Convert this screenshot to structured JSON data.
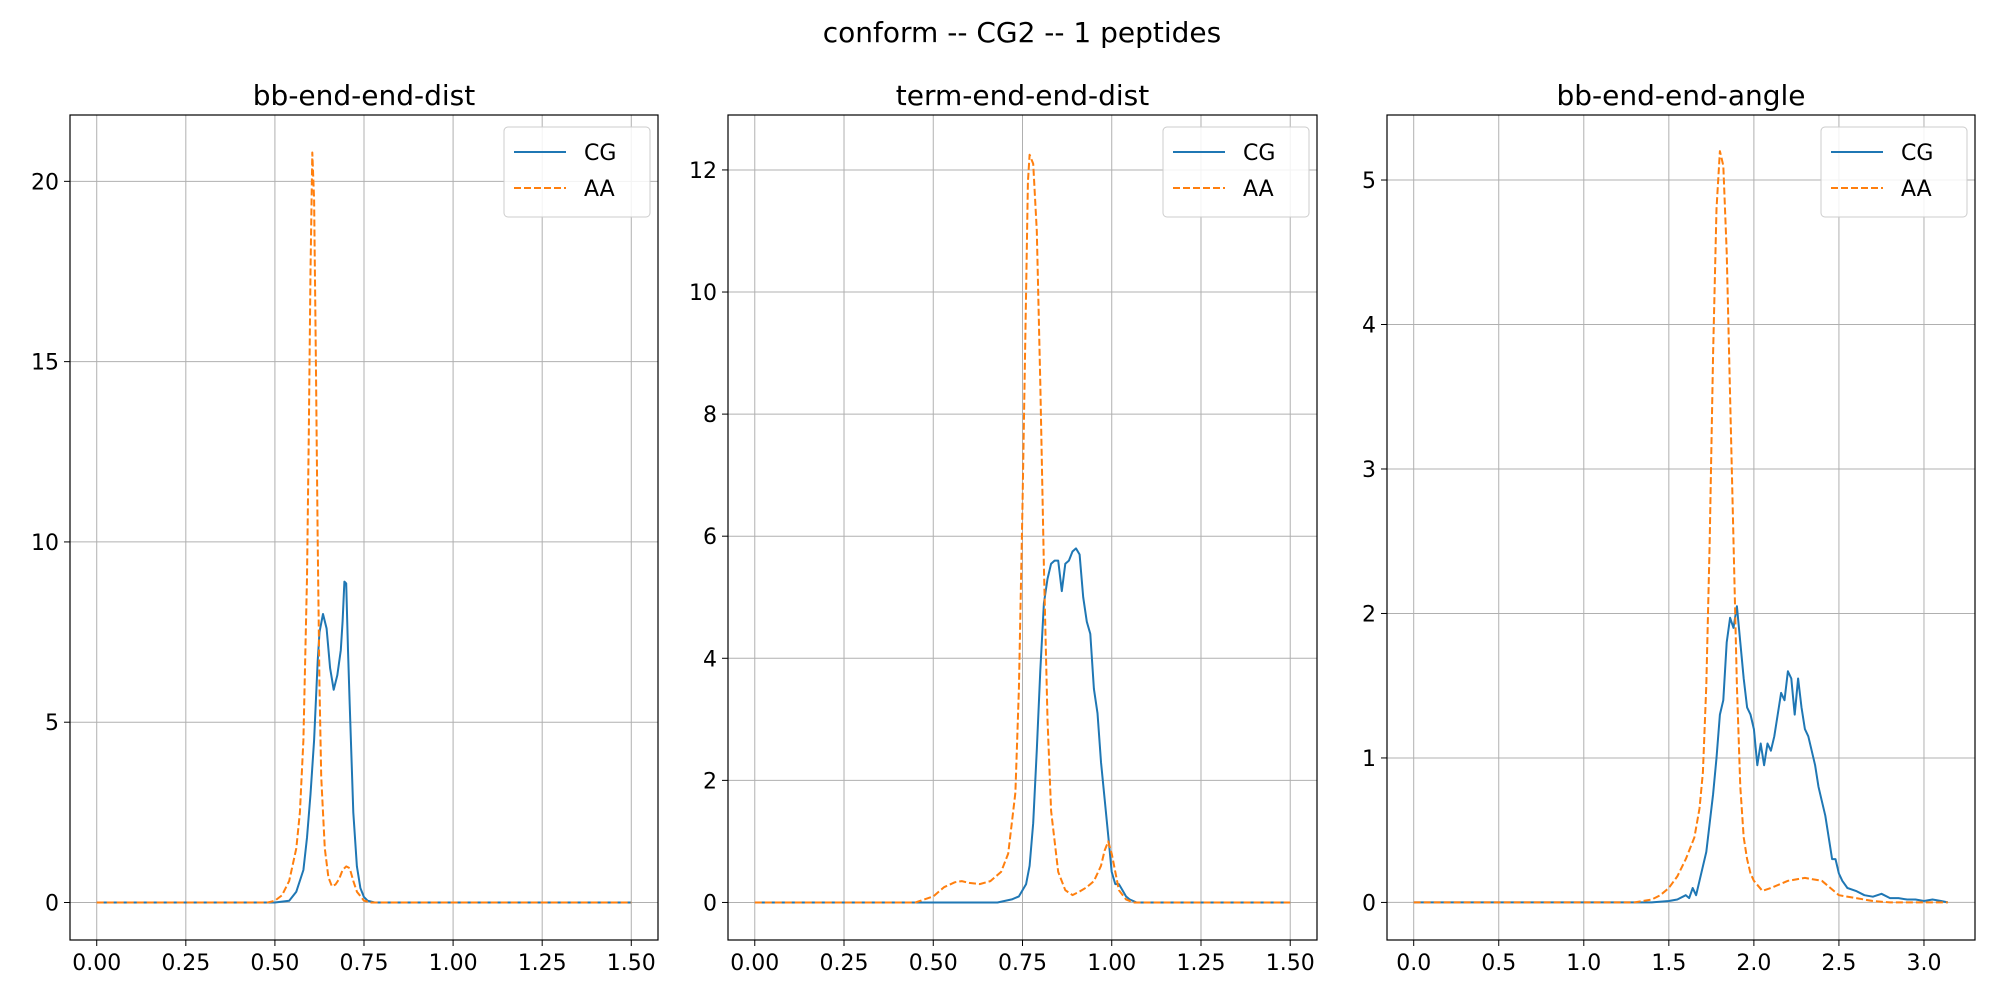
{
  "figure": {
    "suptitle": "conform -- CG2 -- 1 peptides"
  },
  "colors": {
    "CG": "#1f77b4",
    "AA": "#ff7f0e",
    "grid": "#b0b0b0",
    "axes": "#000000"
  },
  "chart_data": [
    {
      "type": "line",
      "title": "bb-end-end-dist",
      "xlabel": "",
      "ylabel": "",
      "xlim": [
        -0.075,
        1.575
      ],
      "ylim": [
        -1.04,
        21.84
      ],
      "xticks": [
        0.0,
        0.25,
        0.5,
        0.75,
        1.0,
        1.25,
        1.5
      ],
      "xtick_labels": [
        "0.00",
        "0.25",
        "0.50",
        "0.75",
        "1.00",
        "1.25",
        "1.50"
      ],
      "yticks": [
        0,
        5,
        10,
        15,
        20
      ],
      "ytick_labels": [
        "0",
        "5",
        "10",
        "15",
        "20"
      ],
      "grid": true,
      "legend": "top-right",
      "series": [
        {
          "name": "CG",
          "style": "solid",
          "x": [
            0.0,
            0.5,
            0.54,
            0.56,
            0.58,
            0.59,
            0.6,
            0.61,
            0.62,
            0.625,
            0.635,
            0.645,
            0.655,
            0.665,
            0.675,
            0.685,
            0.69,
            0.695,
            0.7,
            0.705,
            0.71,
            0.715,
            0.72,
            0.73,
            0.74,
            0.75,
            0.76,
            0.78,
            1.5
          ],
          "y": [
            0,
            0,
            0.05,
            0.3,
            0.9,
            1.8,
            3.0,
            4.5,
            6.7,
            7.5,
            8.0,
            7.6,
            6.5,
            5.9,
            6.3,
            7.0,
            7.8,
            8.9,
            8.85,
            7.0,
            5.5,
            4.0,
            2.5,
            1.0,
            0.4,
            0.15,
            0.05,
            0,
            0
          ]
        },
        {
          "name": "AA",
          "style": "dashed",
          "x": [
            0.0,
            0.48,
            0.5,
            0.52,
            0.54,
            0.56,
            0.57,
            0.58,
            0.59,
            0.595,
            0.6,
            0.605,
            0.61,
            0.615,
            0.62,
            0.625,
            0.63,
            0.64,
            0.65,
            0.66,
            0.67,
            0.68,
            0.69,
            0.7,
            0.71,
            0.72,
            0.73,
            0.75,
            0.77,
            1.5
          ],
          "y": [
            0,
            0,
            0.05,
            0.2,
            0.6,
            1.5,
            2.5,
            4.5,
            9.0,
            13.0,
            17.5,
            20.8,
            19.5,
            15.0,
            10.0,
            6.0,
            3.5,
            1.5,
            0.7,
            0.45,
            0.5,
            0.65,
            0.9,
            1.0,
            0.95,
            0.6,
            0.3,
            0.05,
            0,
            0
          ]
        }
      ]
    },
    {
      "type": "line",
      "title": "term-end-end-dist",
      "xlabel": "",
      "ylabel": "",
      "xlim": [
        -0.075,
        1.575
      ],
      "ylim": [
        -0.615,
        12.9
      ],
      "xticks": [
        0.0,
        0.25,
        0.5,
        0.75,
        1.0,
        1.25,
        1.5
      ],
      "xtick_labels": [
        "0.00",
        "0.25",
        "0.50",
        "0.75",
        "1.00",
        "1.25",
        "1.50"
      ],
      "yticks": [
        0,
        2,
        4,
        6,
        8,
        10,
        12
      ],
      "ytick_labels": [
        "0",
        "2",
        "4",
        "6",
        "8",
        "10",
        "12"
      ],
      "grid": true,
      "legend": "top-right",
      "series": [
        {
          "name": "CG",
          "style": "solid",
          "x": [
            0.0,
            0.68,
            0.72,
            0.74,
            0.76,
            0.77,
            0.78,
            0.79,
            0.8,
            0.81,
            0.82,
            0.83,
            0.84,
            0.85,
            0.86,
            0.87,
            0.88,
            0.89,
            0.9,
            0.91,
            0.92,
            0.93,
            0.94,
            0.95,
            0.96,
            0.97,
            0.98,
            0.99,
            1.0,
            1.01,
            1.02,
            1.03,
            1.04,
            1.05,
            1.07,
            1.5
          ],
          "y": [
            0,
            0,
            0.05,
            0.1,
            0.3,
            0.6,
            1.3,
            2.5,
            3.8,
            4.9,
            5.3,
            5.55,
            5.6,
            5.6,
            5.1,
            5.55,
            5.6,
            5.75,
            5.8,
            5.7,
            5.0,
            4.6,
            4.4,
            3.5,
            3.1,
            2.3,
            1.7,
            1.1,
            0.5,
            0.3,
            0.3,
            0.2,
            0.1,
            0.05,
            0,
            0
          ]
        },
        {
          "name": "AA",
          "style": "dashed",
          "x": [
            0.0,
            0.45,
            0.5,
            0.53,
            0.56,
            0.58,
            0.6,
            0.63,
            0.66,
            0.69,
            0.71,
            0.73,
            0.74,
            0.75,
            0.76,
            0.765,
            0.77,
            0.78,
            0.79,
            0.8,
            0.81,
            0.82,
            0.83,
            0.85,
            0.87,
            0.89,
            0.91,
            0.93,
            0.95,
            0.97,
            0.98,
            0.99,
            1.0,
            1.01,
            1.02,
            1.04,
            1.06,
            1.5
          ],
          "y": [
            0,
            0,
            0.1,
            0.25,
            0.33,
            0.35,
            0.32,
            0.3,
            0.35,
            0.5,
            0.8,
            1.8,
            3.5,
            6.5,
            10.0,
            11.8,
            12.25,
            12.1,
            11.0,
            8.5,
            5.5,
            3.0,
            1.5,
            0.5,
            0.2,
            0.12,
            0.18,
            0.25,
            0.35,
            0.6,
            0.85,
            1.0,
            0.8,
            0.5,
            0.2,
            0.05,
            0,
            0
          ]
        }
      ]
    },
    {
      "type": "line",
      "title": "bb-end-end-angle",
      "xlabel": "",
      "ylabel": "",
      "xlim": [
        -0.157,
        3.3
      ],
      "ylim": [
        -0.26,
        5.45
      ],
      "xticks": [
        0.0,
        0.5,
        1.0,
        1.5,
        2.0,
        2.5,
        3.0
      ],
      "xtick_labels": [
        "0.0",
        "0.5",
        "1.0",
        "1.5",
        "2.0",
        "2.5",
        "3.0"
      ],
      "yticks": [
        0,
        1,
        2,
        3,
        4,
        5
      ],
      "ytick_labels": [
        "0",
        "1",
        "2",
        "3",
        "4",
        "5"
      ],
      "grid": true,
      "legend": "top-right",
      "series": [
        {
          "name": "CG",
          "style": "solid",
          "x": [
            0.0,
            1.4,
            1.5,
            1.55,
            1.6,
            1.62,
            1.64,
            1.66,
            1.68,
            1.7,
            1.72,
            1.74,
            1.76,
            1.78,
            1.8,
            1.82,
            1.84,
            1.86,
            1.88,
            1.9,
            1.92,
            1.94,
            1.96,
            1.98,
            2.0,
            2.02,
            2.04,
            2.06,
            2.08,
            2.1,
            2.12,
            2.14,
            2.16,
            2.18,
            2.2,
            2.22,
            2.24,
            2.26,
            2.28,
            2.3,
            2.32,
            2.34,
            2.36,
            2.38,
            2.4,
            2.42,
            2.44,
            2.46,
            2.48,
            2.5,
            2.52,
            2.55,
            2.6,
            2.65,
            2.7,
            2.75,
            2.8,
            2.85,
            2.9,
            2.95,
            3.0,
            3.05,
            3.1,
            3.14
          ],
          "y": [
            0,
            0,
            0.01,
            0.02,
            0.05,
            0.03,
            0.1,
            0.05,
            0.15,
            0.25,
            0.35,
            0.55,
            0.75,
            1.0,
            1.3,
            1.4,
            1.8,
            1.97,
            1.9,
            2.05,
            1.8,
            1.55,
            1.35,
            1.3,
            1.2,
            0.95,
            1.1,
            0.95,
            1.1,
            1.05,
            1.15,
            1.3,
            1.45,
            1.4,
            1.6,
            1.55,
            1.3,
            1.55,
            1.35,
            1.2,
            1.15,
            1.05,
            0.95,
            0.8,
            0.7,
            0.6,
            0.45,
            0.3,
            0.3,
            0.2,
            0.15,
            0.1,
            0.08,
            0.05,
            0.04,
            0.06,
            0.03,
            0.03,
            0.02,
            0.02,
            0.01,
            0.02,
            0.01,
            0
          ]
        },
        {
          "name": "AA",
          "style": "dashed",
          "x": [
            0.0,
            1.3,
            1.4,
            1.45,
            1.5,
            1.55,
            1.6,
            1.65,
            1.68,
            1.7,
            1.72,
            1.74,
            1.76,
            1.78,
            1.8,
            1.82,
            1.84,
            1.86,
            1.88,
            1.9,
            1.92,
            1.94,
            1.96,
            1.98,
            2.0,
            2.05,
            2.1,
            2.2,
            2.3,
            2.4,
            2.45,
            2.5,
            2.6,
            2.7,
            2.8,
            3.14
          ],
          "y": [
            0,
            0,
            0.02,
            0.05,
            0.1,
            0.18,
            0.3,
            0.45,
            0.65,
            0.9,
            1.5,
            2.5,
            3.8,
            4.8,
            5.2,
            5.1,
            4.5,
            3.5,
            2.5,
            1.5,
            0.8,
            0.45,
            0.3,
            0.2,
            0.15,
            0.08,
            0.1,
            0.15,
            0.17,
            0.15,
            0.1,
            0.05,
            0.03,
            0.01,
            0,
            0
          ]
        }
      ]
    }
  ]
}
